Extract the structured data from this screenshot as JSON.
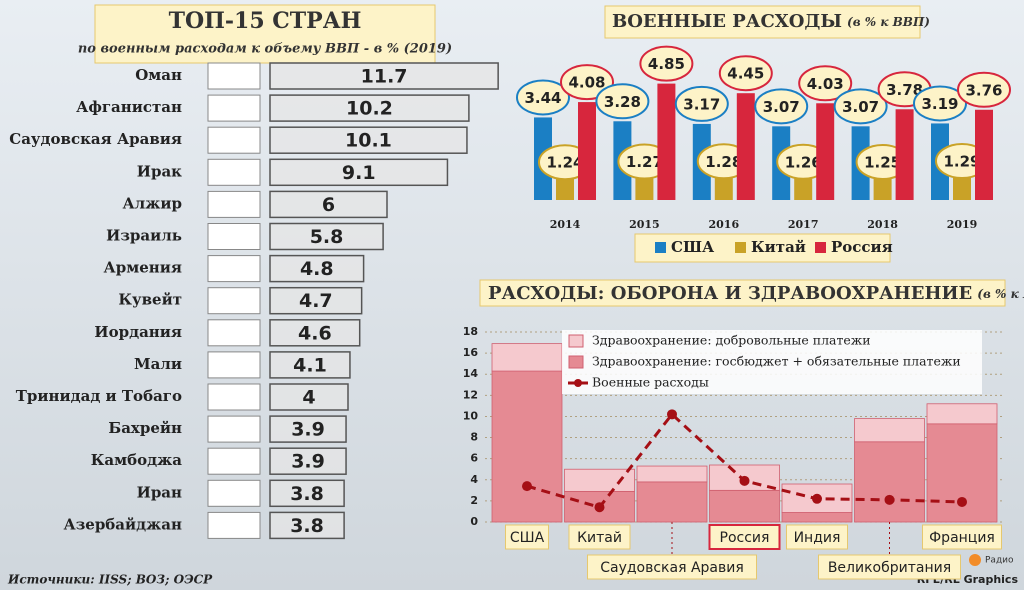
{
  "chart_data": [
    {
      "type": "hbar",
      "title": "ТОП-15 СТРАН",
      "subtitle": "по военным расходам к объему ВВП - в % (2019)",
      "categories": [
        "Оман",
        "Афганистан",
        "Саудовская Аравия",
        "Ирак",
        "Алжир",
        "Израиль",
        "Армения",
        "Кувейт",
        "Иордания",
        "Мали",
        "Тринидад и Тобаго",
        "Бахрейн",
        "Камбоджа",
        "Иран",
        "Азербайджан"
      ],
      "values": [
        11.7,
        10.2,
        10.1,
        9.1,
        6,
        5.8,
        4.8,
        4.7,
        4.6,
        4.1,
        4,
        3.9,
        3.9,
        3.8,
        3.8
      ],
      "color": "#e6e6e6"
    },
    {
      "type": "grouped_bar",
      "title": "ВОЕННЫЕ РАСХОДЫ",
      "title_note": "(в % к ВВП)",
      "categories": [
        "2014",
        "2015",
        "2016",
        "2017",
        "2018",
        "2019"
      ],
      "series": [
        {
          "name": "США",
          "color": "#1b7fc4",
          "values": [
            3.44,
            3.28,
            3.17,
            3.07,
            3.07,
            3.19
          ]
        },
        {
          "name": "Китай",
          "color": "#c9a227",
          "values": [
            1.24,
            1.27,
            1.28,
            1.26,
            1.25,
            1.29
          ]
        },
        {
          "name": "Россия",
          "color": "#d7263d",
          "values": [
            4.08,
            4.85,
            4.45,
            4.03,
            3.78,
            3.76
          ]
        }
      ]
    },
    {
      "type": "stacked_combo",
      "title": "РАСХОДЫ: ОБОРОНА И ЗДРАВООХРАНЕНИЕ",
      "title_note": "(в % к ВВП)",
      "categories": [
        "США",
        "Китай",
        "Саудовская Аравия",
        "Россия",
        "Индия",
        "Великобритания",
        "Франция"
      ],
      "ylim": [
        0,
        18
      ],
      "yticks": [
        0,
        2,
        4,
        6,
        8,
        10,
        12,
        14,
        16,
        18
      ],
      "grid": true,
      "series": [
        {
          "name": "Здравоохранение: добровольные платежи",
          "type": "bar",
          "color": "#f5c9ce",
          "values": [
            2.6,
            2.1,
            1.5,
            2.4,
            2.7,
            2.2,
            1.9
          ]
        },
        {
          "name": "Здравоохранение: госбюджет + обязательные платежи",
          "type": "bar",
          "color": "#e58a93",
          "values": [
            14.3,
            2.9,
            3.8,
            3.0,
            0.9,
            7.6,
            9.3
          ]
        },
        {
          "name": "Военные расходы",
          "type": "line",
          "color": "#a50f15",
          "values": [
            3.4,
            1.4,
            10.2,
            3.9,
            2.2,
            2.1,
            1.9
          ]
        }
      ]
    }
  ],
  "footer": {
    "source": "Источники: IISS; ВОЗ; ОЭСР",
    "credit": "RFE/RL Graphics",
    "logo": "Радио"
  }
}
